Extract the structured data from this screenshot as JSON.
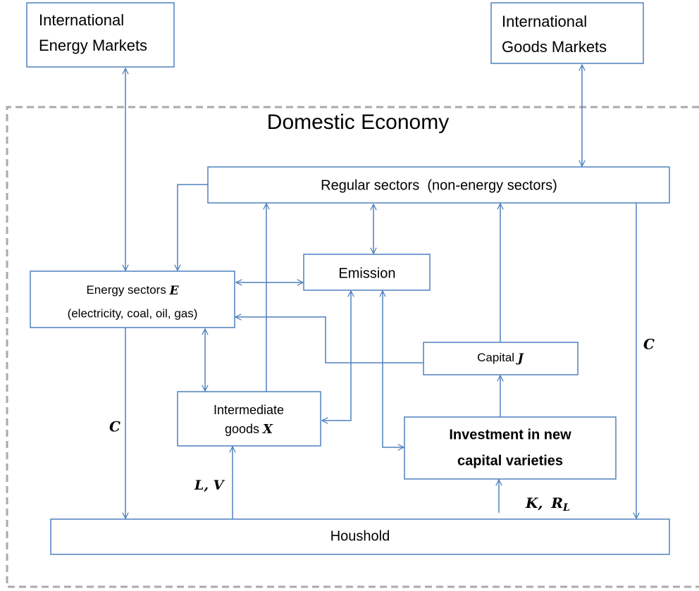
{
  "title": "Domestic Economy",
  "nodes": [
    {
      "lines": [
        "International",
        "Energy Markets"
      ]
    },
    {
      "lines": [
        "International",
        "Goods Markets"
      ]
    },
    {
      "lines": [
        "Regular sectors  (non-energy sectors)"
      ]
    },
    {
      "lines": [
        "Emission"
      ]
    },
    {
      "lines": [
        "Energy sectors",
        "(electricity, coal, oil, gas)"
      ],
      "symbol": "E"
    },
    {
      "lines": [
        "Capital"
      ],
      "symbol": "J"
    },
    {
      "lines": [
        "Intermediate",
        "goods"
      ],
      "symbol": "X"
    },
    {
      "lines": [
        "Investment in new",
        "capital varieties"
      ]
    },
    {
      "lines": [
        "Houshold"
      ]
    }
  ],
  "flow_labels": [
    "C",
    "C",
    "L, V",
    "K,",
    "R",
    "L"
  ]
}
